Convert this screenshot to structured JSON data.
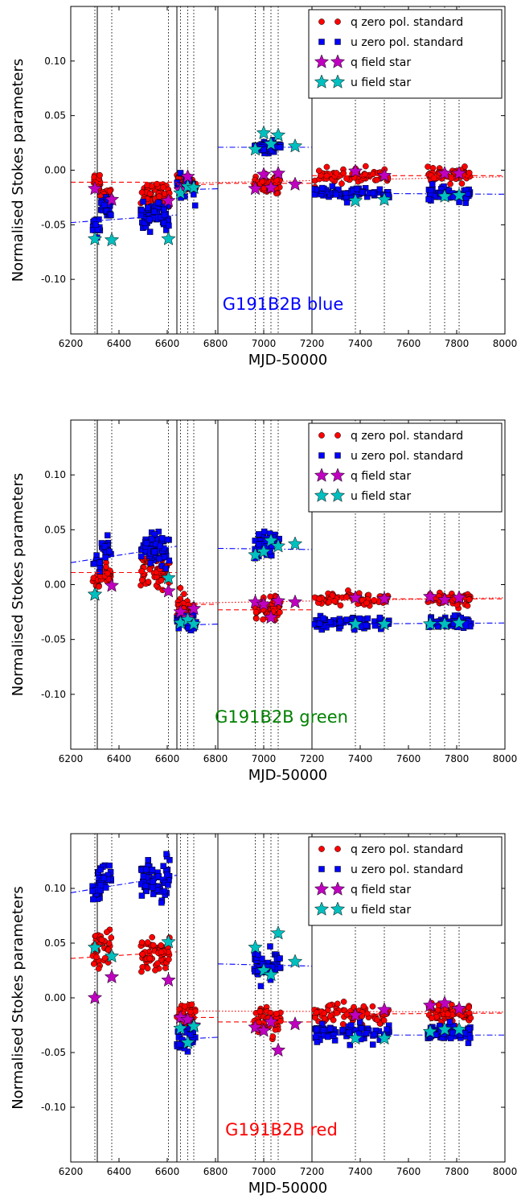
{
  "chart_data": [
    {
      "type": "scatter",
      "panel_label": "G191B2B blue",
      "panel_label_color": "#0000ff",
      "xlabel": "MJD-50000",
      "ylabel": "Normalised Stokes parameters",
      "xlim": [
        6200,
        8000
      ],
      "ylim": [
        -0.15,
        0.15
      ],
      "xticks": [
        6200,
        6400,
        6600,
        6800,
        7000,
        7200,
        7400,
        7600,
        7800,
        8000
      ],
      "yticks": [
        -0.1,
        -0.05,
        0.0,
        0.05,
        0.1
      ],
      "legend_position": "top-right",
      "legend": [
        "q zero pol. standard",
        "u zero pol. standard",
        "q field star",
        "u field star"
      ],
      "solid_vlines": [
        6310,
        6640,
        6810,
        7200
      ],
      "dotted_vlines": [
        6300,
        6370,
        6605,
        6655,
        6685,
        6710,
        6965,
        7000,
        7030,
        7060,
        7380,
        7500,
        7690,
        7750,
        7810
      ],
      "clusters": {
        "q": [
          [
            6290,
            6322,
            -0.011,
            0.005,
            20
          ],
          [
            6322,
            6370,
            -0.022,
            0.004,
            20
          ],
          [
            6490,
            6610,
            -0.022,
            0.005,
            60
          ],
          [
            6640,
            6720,
            -0.013,
            0.004,
            30
          ],
          [
            6960,
            7070,
            -0.012,
            0.004,
            50
          ],
          [
            7210,
            7440,
            -0.005,
            0.003,
            60
          ],
          [
            7450,
            7520,
            -0.005,
            0.003,
            15
          ],
          [
            7680,
            7860,
            -0.005,
            0.003,
            60
          ]
        ],
        "u": [
          [
            6290,
            6322,
            -0.05,
            0.004,
            15
          ],
          [
            6322,
            6370,
            -0.035,
            0.006,
            20
          ],
          [
            6490,
            6610,
            -0.042,
            0.006,
            55
          ],
          [
            6640,
            6720,
            -0.017,
            0.006,
            25
          ],
          [
            6960,
            7070,
            0.021,
            0.003,
            45
          ],
          [
            7210,
            7440,
            -0.021,
            0.003,
            55
          ],
          [
            7450,
            7520,
            -0.022,
            0.003,
            15
          ],
          [
            7680,
            7860,
            -0.022,
            0.003,
            55
          ]
        ]
      },
      "q_field_star": [
        [
          6300,
          -0.017
        ],
        [
          6370,
          -0.027
        ],
        [
          6605,
          -0.028
        ],
        [
          6655,
          -0.018
        ],
        [
          6685,
          -0.006
        ],
        [
          6710,
          -0.016
        ],
        [
          6965,
          -0.017
        ],
        [
          7000,
          -0.004
        ],
        [
          7030,
          -0.016
        ],
        [
          7060,
          -0.003
        ],
        [
          7130,
          -0.013
        ],
        [
          7380,
          -0.001
        ],
        [
          7500,
          -0.005
        ],
        [
          7750,
          -0.003
        ],
        [
          7810,
          -0.003
        ]
      ],
      "u_field_star": [
        [
          6300,
          -0.063
        ],
        [
          6370,
          -0.064
        ],
        [
          6605,
          -0.063
        ],
        [
          6655,
          -0.021
        ],
        [
          6685,
          -0.015
        ],
        [
          6710,
          -0.016
        ],
        [
          6965,
          0.019
        ],
        [
          7000,
          0.034
        ],
        [
          7030,
          0.024
        ],
        [
          7060,
          0.032
        ],
        [
          7130,
          0.022
        ],
        [
          7380,
          -0.028
        ],
        [
          7500,
          -0.027
        ],
        [
          7750,
          -0.024
        ],
        [
          7810,
          -0.023
        ]
      ],
      "fit_lines": [
        {
          "series": "q",
          "style": "dashed",
          "x": [
            6200,
            6640
          ],
          "y": [
            -0.011,
            -0.011
          ]
        },
        {
          "series": "q",
          "style": "dashed",
          "x": [
            6640,
            6810
          ],
          "y": [
            -0.013,
            -0.013
          ]
        },
        {
          "series": "q",
          "style": "dashed",
          "x": [
            6810,
            7200
          ],
          "y": [
            -0.012,
            -0.012
          ]
        },
        {
          "series": "q",
          "style": "dashed",
          "x": [
            7200,
            8000
          ],
          "y": [
            -0.005,
            -0.005
          ]
        },
        {
          "series": "q",
          "style": "dotted",
          "x": [
            6640,
            8000
          ],
          "y": [
            -0.012,
            -0.006
          ]
        },
        {
          "series": "u",
          "style": "dashdot",
          "x": [
            6200,
            6640
          ],
          "y": [
            -0.048,
            -0.041
          ]
        },
        {
          "series": "u",
          "style": "dashdot",
          "x": [
            6640,
            6810
          ],
          "y": [
            -0.018,
            -0.017
          ]
        },
        {
          "series": "u",
          "style": "dashdot",
          "x": [
            6810,
            7200
          ],
          "y": [
            0.021,
            0.021
          ]
        },
        {
          "series": "u",
          "style": "dashdot",
          "x": [
            7200,
            8000
          ],
          "y": [
            -0.021,
            -0.022
          ]
        }
      ]
    },
    {
      "type": "scatter",
      "panel_label": "G191B2B green",
      "panel_label_color": "#008000",
      "xlabel": "MJD-50000",
      "ylabel": "Normalised Stokes parameters",
      "xlim": [
        6200,
        8000
      ],
      "ylim": [
        -0.15,
        0.15
      ],
      "xticks": [
        6200,
        6400,
        6600,
        6800,
        7000,
        7200,
        7400,
        7600,
        7800,
        8000
      ],
      "yticks": [
        -0.1,
        -0.05,
        0.0,
        0.05,
        0.1
      ],
      "legend_position": "top-right",
      "legend": [
        "q zero pol. standard",
        "u zero pol. standard",
        "q field star",
        "u field star"
      ],
      "solid_vlines": [
        6310,
        6640,
        6810,
        7200
      ],
      "dotted_vlines": [
        6300,
        6370,
        6605,
        6655,
        6685,
        6710,
        6965,
        7000,
        7030,
        7060,
        7380,
        7500,
        7690,
        7750,
        7810
      ],
      "clusters": {
        "q": [
          [
            6290,
            6322,
            0.003,
            0.004,
            15
          ],
          [
            6322,
            6370,
            0.01,
            0.004,
            20
          ],
          [
            6490,
            6610,
            0.012,
            0.007,
            60
          ],
          [
            6640,
            6720,
            -0.022,
            0.006,
            30
          ],
          [
            6960,
            7070,
            -0.022,
            0.005,
            50
          ],
          [
            7210,
            7440,
            -0.013,
            0.003,
            60
          ],
          [
            7450,
            7520,
            -0.013,
            0.003,
            15
          ],
          [
            7680,
            7860,
            -0.013,
            0.003,
            60
          ]
        ],
        "u": [
          [
            6290,
            6322,
            0.02,
            0.004,
            12
          ],
          [
            6322,
            6370,
            0.033,
            0.005,
            20
          ],
          [
            6490,
            6610,
            0.033,
            0.007,
            60
          ],
          [
            6640,
            6720,
            -0.035,
            0.005,
            30
          ],
          [
            6960,
            7070,
            0.035,
            0.006,
            50
          ],
          [
            7210,
            7440,
            -0.035,
            0.003,
            60
          ],
          [
            7450,
            7520,
            -0.035,
            0.003,
            15
          ],
          [
            7680,
            7860,
            -0.035,
            0.003,
            60
          ]
        ]
      },
      "q_field_star": [
        [
          6300,
          -0.009
        ],
        [
          6370,
          -0.001
        ],
        [
          6605,
          -0.006
        ],
        [
          6655,
          -0.025
        ],
        [
          6685,
          -0.03
        ],
        [
          6710,
          -0.022
        ],
        [
          6965,
          -0.016
        ],
        [
          7000,
          -0.018
        ],
        [
          7030,
          -0.03
        ],
        [
          7060,
          -0.015
        ],
        [
          7130,
          -0.016
        ],
        [
          7380,
          -0.012
        ],
        [
          7500,
          -0.013
        ],
        [
          7690,
          -0.011
        ],
        [
          7750,
          -0.014
        ],
        [
          7810,
          -0.012
        ]
      ],
      "u_field_star": [
        [
          6300,
          -0.009
        ],
        [
          6605,
          0.006
        ],
        [
          6655,
          -0.035
        ],
        [
          6685,
          -0.032
        ],
        [
          6710,
          -0.036
        ],
        [
          6965,
          0.027
        ],
        [
          7000,
          0.03
        ],
        [
          7030,
          0.04
        ],
        [
          7060,
          0.035
        ],
        [
          7130,
          0.037
        ],
        [
          7380,
          -0.036
        ],
        [
          7500,
          -0.036
        ],
        [
          7690,
          -0.036
        ],
        [
          7750,
          -0.036
        ],
        [
          7810,
          -0.035
        ]
      ],
      "fit_lines": [
        {
          "series": "q",
          "style": "dashed",
          "x": [
            6200,
            6640
          ],
          "y": [
            0.011,
            0.011
          ]
        },
        {
          "series": "q",
          "style": "dashed",
          "x": [
            6640,
            6810
          ],
          "y": [
            -0.018,
            -0.018
          ]
        },
        {
          "series": "q",
          "style": "dashed",
          "x": [
            6810,
            7200
          ],
          "y": [
            -0.023,
            -0.023
          ]
        },
        {
          "series": "q",
          "style": "dashed",
          "x": [
            7200,
            8000
          ],
          "y": [
            -0.013,
            -0.013
          ]
        },
        {
          "series": "q",
          "style": "dotted",
          "x": [
            6640,
            8000
          ],
          "y": [
            -0.017,
            -0.012
          ]
        },
        {
          "series": "u",
          "style": "dashdot",
          "x": [
            6200,
            6640
          ],
          "y": [
            0.02,
            0.035
          ]
        },
        {
          "series": "u",
          "style": "dashdot",
          "x": [
            6640,
            6810
          ],
          "y": [
            -0.037,
            -0.036
          ]
        },
        {
          "series": "u",
          "style": "dashdot",
          "x": [
            6810,
            7200
          ],
          "y": [
            0.033,
            0.032
          ]
        },
        {
          "series": "u",
          "style": "dashdot",
          "x": [
            7200,
            8000
          ],
          "y": [
            -0.036,
            -0.035
          ]
        }
      ]
    },
    {
      "type": "scatter",
      "panel_label": "G191B2B red",
      "panel_label_color": "#ff0000",
      "xlabel": "MJD-50000",
      "ylabel": "Normalised Stokes parameters",
      "xlim": [
        6200,
        8000
      ],
      "ylim": [
        -0.15,
        0.15
      ],
      "xticks": [
        6200,
        6400,
        6600,
        6800,
        7000,
        7200,
        7400,
        7600,
        7800,
        8000
      ],
      "yticks": [
        -0.1,
        -0.05,
        0.0,
        0.05,
        0.1
      ],
      "legend_position": "top-right",
      "legend": [
        "q zero pol. standard",
        "u zero pol. standard",
        "q field star",
        "u field star"
      ],
      "solid_vlines": [
        6310,
        6640,
        6810,
        7200
      ],
      "dotted_vlines": [
        6300,
        6370,
        6605,
        6655,
        6685,
        6710,
        6965,
        7000,
        7030,
        7060,
        7380,
        7500,
        7690,
        7750,
        7810
      ],
      "clusters": {
        "q": [
          [
            6290,
            6322,
            0.045,
            0.007,
            20
          ],
          [
            6322,
            6370,
            0.045,
            0.008,
            20
          ],
          [
            6490,
            6610,
            0.04,
            0.007,
            60
          ],
          [
            6640,
            6720,
            -0.017,
            0.007,
            30
          ],
          [
            6960,
            7070,
            -0.022,
            0.006,
            50
          ],
          [
            7210,
            7440,
            -0.014,
            0.005,
            60
          ],
          [
            7450,
            7520,
            -0.015,
            0.004,
            15
          ],
          [
            7680,
            7860,
            -0.014,
            0.004,
            60
          ]
        ],
        "u": [
          [
            6290,
            6322,
            0.1,
            0.008,
            20
          ],
          [
            6322,
            6370,
            0.108,
            0.008,
            20
          ],
          [
            6490,
            6610,
            0.108,
            0.009,
            60
          ],
          [
            6640,
            6720,
            -0.035,
            0.006,
            30
          ],
          [
            6960,
            7070,
            0.028,
            0.007,
            50
          ],
          [
            7210,
            7440,
            -0.033,
            0.005,
            60
          ],
          [
            7450,
            7520,
            -0.033,
            0.004,
            15
          ],
          [
            7680,
            7860,
            -0.032,
            0.004,
            60
          ]
        ]
      },
      "q_field_star": [
        [
          6300,
          0.0
        ],
        [
          6370,
          0.019
        ],
        [
          6605,
          0.016
        ],
        [
          6655,
          -0.018
        ],
        [
          6685,
          -0.02
        ],
        [
          6710,
          -0.025
        ],
        [
          6965,
          -0.027
        ],
        [
          7000,
          -0.03
        ],
        [
          7030,
          -0.022
        ],
        [
          7060,
          -0.048
        ],
        [
          7130,
          -0.024
        ],
        [
          7380,
          -0.016
        ],
        [
          7500,
          -0.011
        ],
        [
          7690,
          -0.007
        ],
        [
          7750,
          -0.005
        ],
        [
          7810,
          -0.01
        ]
      ],
      "u_field_star": [
        [
          6300,
          0.046
        ],
        [
          6370,
          0.038
        ],
        [
          6605,
          0.051
        ],
        [
          6655,
          -0.028
        ],
        [
          6685,
          -0.041
        ],
        [
          6710,
          -0.026
        ],
        [
          6965,
          0.046
        ],
        [
          7000,
          0.025
        ],
        [
          7030,
          0.021
        ],
        [
          7060,
          0.059
        ],
        [
          7130,
          0.033
        ],
        [
          7380,
          -0.037
        ],
        [
          7500,
          -0.037
        ],
        [
          7690,
          -0.031
        ],
        [
          7750,
          -0.029
        ],
        [
          7810,
          -0.029
        ]
      ],
      "fit_lines": [
        {
          "series": "q",
          "style": "dashed",
          "x": [
            6200,
            6640
          ],
          "y": [
            0.036,
            0.042
          ]
        },
        {
          "series": "q",
          "style": "dashed",
          "x": [
            6640,
            6810
          ],
          "y": [
            -0.018,
            -0.018
          ]
        },
        {
          "series": "q",
          "style": "dashed",
          "x": [
            6810,
            7200
          ],
          "y": [
            -0.022,
            -0.022
          ]
        },
        {
          "series": "q",
          "style": "dashed",
          "x": [
            7200,
            8000
          ],
          "y": [
            -0.015,
            -0.014
          ]
        },
        {
          "series": "q",
          "style": "dotted",
          "x": [
            6640,
            8000
          ],
          "y": [
            -0.012,
            -0.013
          ]
        },
        {
          "series": "u",
          "style": "dashdot",
          "x": [
            6200,
            6640
          ],
          "y": [
            0.096,
            0.112
          ]
        },
        {
          "series": "u",
          "style": "dashdot",
          "x": [
            6640,
            6810
          ],
          "y": [
            -0.038,
            -0.036
          ]
        },
        {
          "series": "u",
          "style": "dashdot",
          "x": [
            6810,
            7200
          ],
          "y": [
            0.031,
            0.029
          ]
        },
        {
          "series": "u",
          "style": "dashdot",
          "x": [
            7200,
            8000
          ],
          "y": [
            -0.034,
            -0.034
          ]
        }
      ]
    }
  ],
  "colors": {
    "q": "#ff0000",
    "u": "#0000ff",
    "q_star": "#bf00bf",
    "u_star": "#00bfbf",
    "solid_vline": "#000000",
    "dotted_vline": "#000000"
  }
}
